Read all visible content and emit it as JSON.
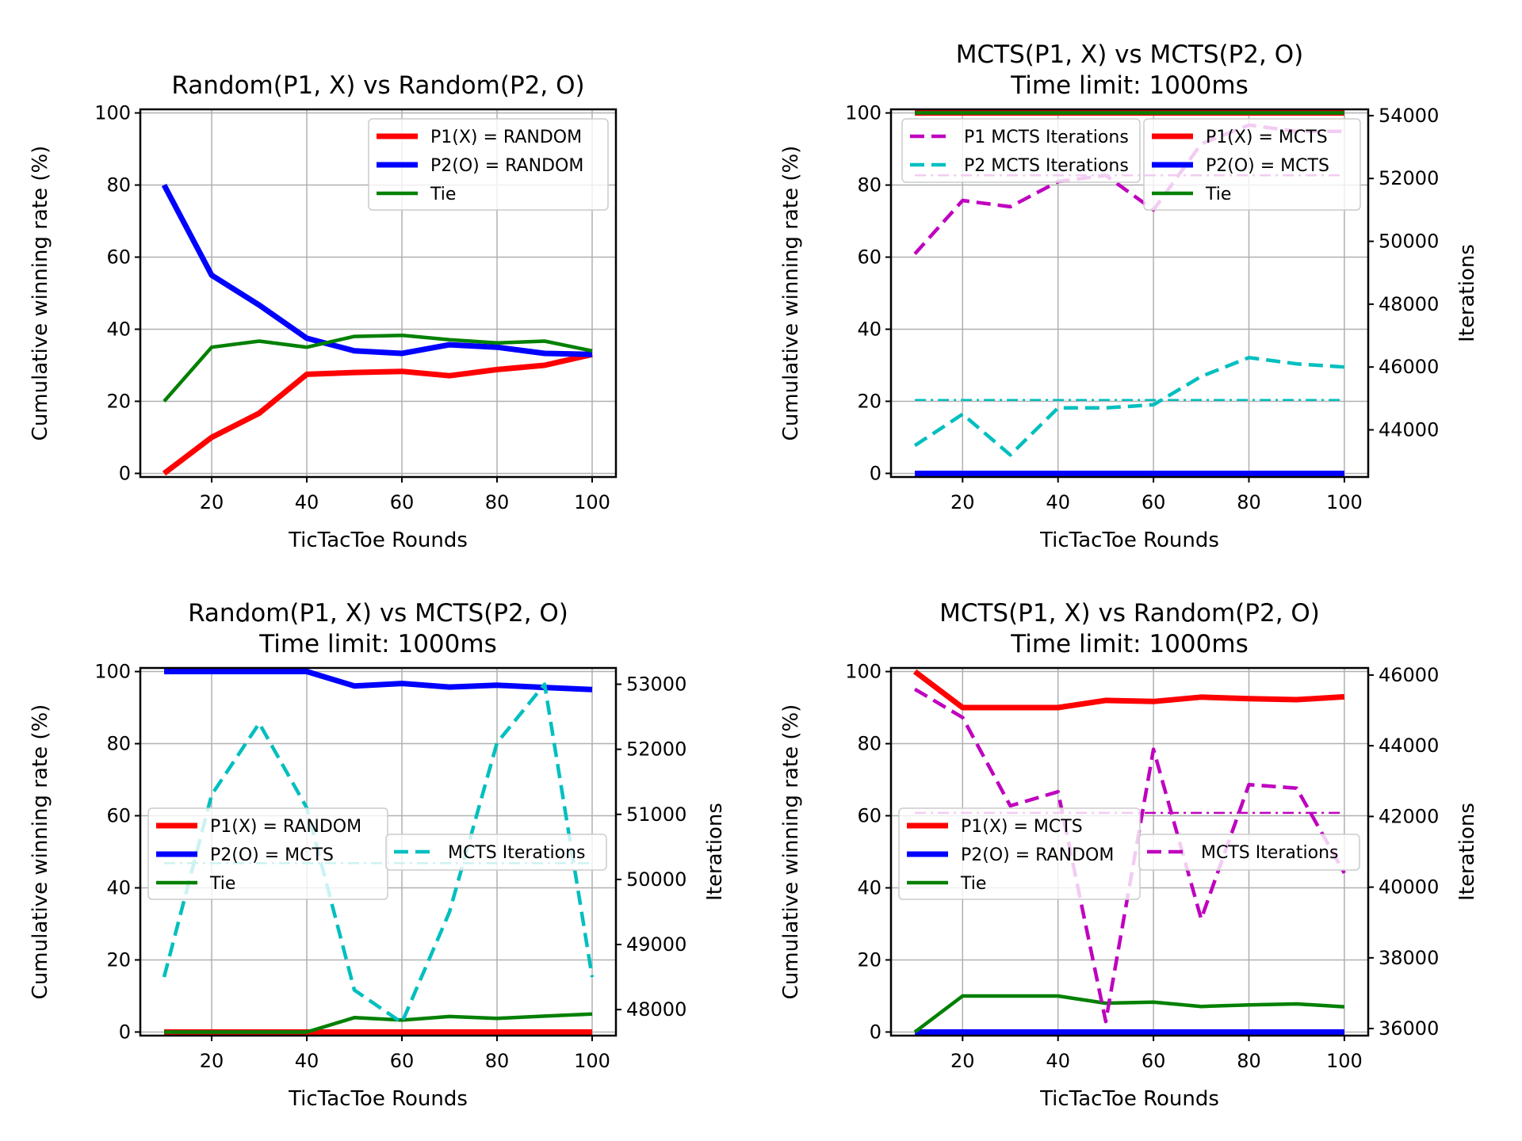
{
  "chart_data": [
    {
      "type": "line",
      "title": [
        "Random(P1, X) vs Random(P2, O)"
      ],
      "xlabel": "TicTacToe Rounds",
      "ylabel": "Cumulative winning rate (%)",
      "xlim": [
        5,
        105
      ],
      "ylim": [
        -1,
        101
      ],
      "xticks": [
        20,
        40,
        60,
        80,
        100
      ],
      "yticks": [
        0,
        20,
        40,
        60,
        80,
        100
      ],
      "grid": true,
      "x": [
        10,
        20,
        30,
        40,
        50,
        60,
        70,
        80,
        90,
        100
      ],
      "series": [
        {
          "name": "P1(X) = RANDOM",
          "color": "#ff0000",
          "style": "solid",
          "width": 7,
          "axis": "left",
          "values": [
            0,
            10,
            16.7,
            27.5,
            28,
            28.3,
            27.1,
            28.8,
            30,
            33
          ]
        },
        {
          "name": "P2(O) = RANDOM",
          "color": "#0000ff",
          "style": "solid",
          "width": 7,
          "axis": "left",
          "values": [
            80,
            55,
            46.7,
            37.5,
            34,
            33.3,
            35.7,
            35,
            33.3,
            33
          ]
        },
        {
          "name": "Tie",
          "color": "#008000",
          "style": "solid",
          "width": 4.5,
          "axis": "left",
          "values": [
            20,
            35,
            36.7,
            35,
            38,
            38.3,
            37.1,
            36.2,
            36.7,
            34
          ]
        }
      ],
      "legends": [
        {
          "placement": "upper right",
          "entries": [
            "P1(X) = RANDOM",
            "P2(O) = RANDOM",
            "Tie"
          ]
        }
      ]
    },
    {
      "type": "line",
      "title": [
        "MCTS(P1, X) vs MCTS(P2, O)",
        "Time limit: 1000ms"
      ],
      "xlabel": "TicTacToe Rounds",
      "ylabel": "Cumulative winning rate (%)",
      "y2label": "Iterations",
      "xlim": [
        5,
        105
      ],
      "ylim": [
        -1,
        101
      ],
      "y2lim": [
        42500,
        54200
      ],
      "xticks": [
        20,
        40,
        60,
        80,
        100
      ],
      "yticks": [
        0,
        20,
        40,
        60,
        80,
        100
      ],
      "y2ticks": [
        44000,
        46000,
        48000,
        50000,
        52000,
        54000
      ],
      "grid": true,
      "x": [
        10,
        20,
        30,
        40,
        50,
        60,
        70,
        80,
        90,
        100
      ],
      "series": [
        {
          "name": "P1(X) = MCTS",
          "color": "#ff0000",
          "style": "solid",
          "width": 7,
          "axis": "left",
          "values": [
            100,
            100,
            100,
            100,
            100,
            100,
            100,
            100,
            100,
            100
          ]
        },
        {
          "name": "P2(O) = MCTS",
          "color": "#0000ff",
          "style": "solid",
          "width": 7,
          "axis": "left",
          "values": [
            0,
            0,
            0,
            0,
            0,
            0,
            0,
            0,
            0,
            0
          ]
        },
        {
          "name": "Tie",
          "color": "#008000",
          "style": "solid",
          "width": 4.5,
          "axis": "left",
          "values": [
            100,
            100,
            100,
            100,
            100,
            100,
            100,
            100,
            100,
            100
          ]
        },
        {
          "name": "P1 MCTS Iterations",
          "color": "#bf00bf",
          "style": "dashed",
          "width": 4.5,
          "axis": "right",
          "values": [
            49600,
            51300,
            51100,
            51900,
            52100,
            51000,
            53100,
            53700,
            53500,
            53500
          ]
        },
        {
          "name": "P2 MCTS Iterations",
          "color": "#00bfbf",
          "style": "dashed",
          "width": 4.5,
          "axis": "right",
          "values": [
            43500,
            44500,
            43200,
            44700,
            44700,
            44800,
            45700,
            46300,
            46100,
            46000
          ]
        },
        {
          "name": "P1 MCTS Iterations mean",
          "color": "#bf00bf",
          "style": "dashdot",
          "width": 2.5,
          "axis": "right",
          "values": [
            52100,
            52100,
            52100,
            52100,
            52100,
            52100,
            52100,
            52100,
            52100,
            52100
          ]
        },
        {
          "name": "P2 MCTS Iterations mean",
          "color": "#00bfbf",
          "style": "dashdot",
          "width": 2.5,
          "axis": "right",
          "values": [
            44950,
            44950,
            44950,
            44950,
            44950,
            44950,
            44950,
            44950,
            44950,
            44950
          ]
        }
      ],
      "legends": [
        {
          "placement": "upper left",
          "entries": [
            "P1 MCTS Iterations",
            "P2 MCTS Iterations"
          ]
        },
        {
          "placement": "upper right",
          "entries": [
            "P1(X) = MCTS",
            "P2(O) = MCTS",
            "Tie"
          ]
        }
      ]
    },
    {
      "type": "line",
      "title": [
        "Random(P1, X) vs MCTS(P2, O)",
        "Time limit: 1000ms"
      ],
      "xlabel": "TicTacToe Rounds",
      "ylabel": "Cumulative winning rate (%)",
      "y2label": "Iterations",
      "xlim": [
        5,
        105
      ],
      "ylim": [
        -1,
        101
      ],
      "y2lim": [
        47600,
        53250
      ],
      "xticks": [
        20,
        40,
        60,
        80,
        100
      ],
      "yticks": [
        0,
        20,
        40,
        60,
        80,
        100
      ],
      "y2ticks": [
        48000,
        49000,
        50000,
        51000,
        52000,
        53000
      ],
      "grid": true,
      "x": [
        10,
        20,
        30,
        40,
        50,
        60,
        70,
        80,
        90,
        100
      ],
      "series": [
        {
          "name": "P1(X) = RANDOM",
          "color": "#ff0000",
          "style": "solid",
          "width": 7,
          "axis": "left",
          "values": [
            0,
            0,
            0,
            0,
            0,
            0,
            0,
            0,
            0,
            0
          ]
        },
        {
          "name": "P2(O) = MCTS",
          "color": "#0000ff",
          "style": "solid",
          "width": 7,
          "axis": "left",
          "values": [
            100,
            100,
            100,
            100,
            96,
            96.7,
            95.7,
            96.2,
            95.6,
            95
          ]
        },
        {
          "name": "Tie",
          "color": "#008000",
          "style": "solid",
          "width": 4.5,
          "axis": "left",
          "values": [
            0,
            0,
            0,
            0,
            4,
            3.3,
            4.3,
            3.8,
            4.4,
            5
          ]
        },
        {
          "name": "MCTS Iterations",
          "color": "#00bfbf",
          "style": "dashed",
          "width": 4.5,
          "axis": "right",
          "values": [
            48500,
            51300,
            52400,
            51100,
            48300,
            47800,
            49500,
            52100,
            53000,
            48500
          ]
        },
        {
          "name": "MCTS Iterations mean",
          "color": "#00bfbf",
          "style": "dashdot",
          "width": 2.5,
          "axis": "right",
          "values": [
            50250,
            50250,
            50250,
            50250,
            50250,
            50250,
            50250,
            50250,
            50250,
            50250
          ]
        }
      ],
      "legends": [
        {
          "placement": "center left",
          "entries": [
            "P1(X) = RANDOM",
            "P2(O) = MCTS",
            "Tie"
          ]
        },
        {
          "placement": "center right",
          "entries": [
            "MCTS Iterations"
          ]
        }
      ]
    },
    {
      "type": "line",
      "title": [
        "MCTS(P1, X) vs Random(P2, O)",
        "Time limit: 1000ms"
      ],
      "xlabel": "TicTacToe Rounds",
      "ylabel": "Cumulative winning rate (%)",
      "y2label": "Iterations",
      "xlim": [
        5,
        105
      ],
      "ylim": [
        -1,
        101
      ],
      "y2lim": [
        35800,
        46200
      ],
      "xticks": [
        20,
        40,
        60,
        80,
        100
      ],
      "yticks": [
        0,
        20,
        40,
        60,
        80,
        100
      ],
      "y2ticks": [
        36000,
        38000,
        40000,
        42000,
        44000,
        46000
      ],
      "grid": true,
      "x": [
        10,
        20,
        30,
        40,
        50,
        60,
        70,
        80,
        90,
        100
      ],
      "series": [
        {
          "name": "P1(X) = MCTS",
          "color": "#ff0000",
          "style": "solid",
          "width": 7,
          "axis": "left",
          "values": [
            100,
            90,
            90,
            90,
            92,
            91.7,
            92.9,
            92.5,
            92.2,
            93
          ]
        },
        {
          "name": "P2(O) = RANDOM",
          "color": "#0000ff",
          "style": "solid",
          "width": 7,
          "axis": "left",
          "values": [
            0,
            0,
            0,
            0,
            0,
            0,
            0,
            0,
            0,
            0
          ]
        },
        {
          "name": "Tie",
          "color": "#008000",
          "style": "solid",
          "width": 4.5,
          "axis": "left",
          "values": [
            0,
            10,
            10,
            10,
            8,
            8.3,
            7.1,
            7.5,
            7.8,
            7
          ]
        },
        {
          "name": "MCTS Iterations",
          "color": "#bf00bf",
          "style": "dashed",
          "width": 4.5,
          "axis": "right",
          "values": [
            45600,
            44800,
            42300,
            42700,
            36200,
            43900,
            39100,
            42900,
            42800,
            40400
          ]
        },
        {
          "name": "MCTS Iterations mean",
          "color": "#bf00bf",
          "style": "dashdot",
          "width": 2.5,
          "axis": "right",
          "values": [
            42100,
            42100,
            42100,
            42100,
            42100,
            42100,
            42100,
            42100,
            42100,
            42100
          ]
        }
      ],
      "legends": [
        {
          "placement": "center left",
          "entries": [
            "P1(X) = MCTS",
            "P2(O) = RANDOM",
            "Tie"
          ]
        },
        {
          "placement": "center right",
          "entries": [
            "MCTS Iterations"
          ]
        }
      ]
    }
  ]
}
